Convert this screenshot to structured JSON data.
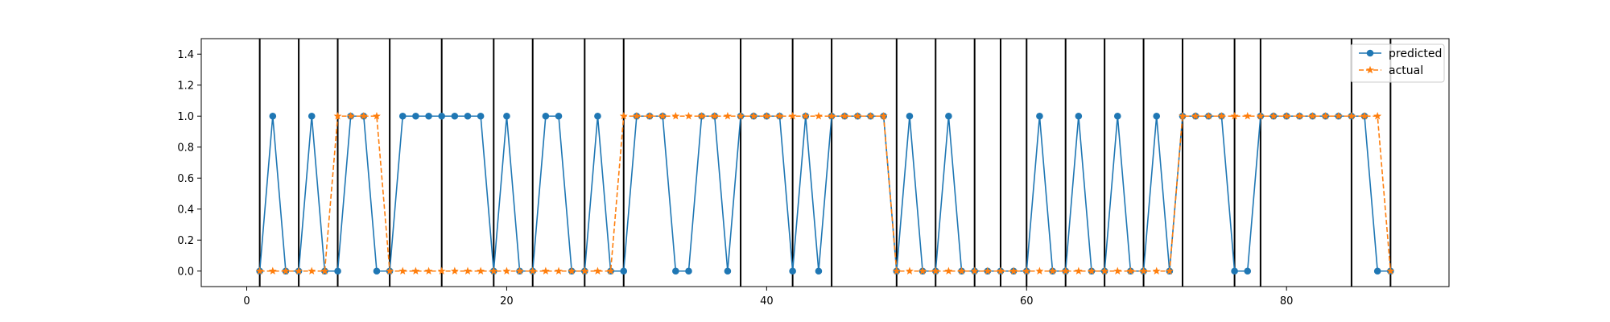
{
  "chart_data": {
    "type": "line",
    "title": "",
    "xlabel": "",
    "ylabel": "",
    "xlim": [
      -3.5,
      92.5
    ],
    "ylim": [
      -0.1,
      1.5
    ],
    "x_ticks": [
      0,
      20,
      40,
      60,
      80
    ],
    "y_ticks": [
      0.0,
      0.2,
      0.4,
      0.6,
      0.8,
      1.0,
      1.2,
      1.4
    ],
    "x_tick_labels": [
      "0",
      "20",
      "40",
      "60",
      "80"
    ],
    "y_tick_labels": [
      "0.0",
      "0.2",
      "0.4",
      "0.6",
      "0.8",
      "1.0",
      "1.2",
      "1.4"
    ],
    "vertical_lines": [
      1,
      4,
      7,
      11,
      15,
      19,
      22,
      26,
      29,
      38,
      42,
      45,
      50,
      53,
      56,
      58,
      60,
      63,
      66,
      69,
      72,
      76,
      78,
      85,
      88
    ],
    "legend_position": "upper right",
    "x": [
      1,
      2,
      3,
      4,
      5,
      6,
      7,
      8,
      9,
      10,
      11,
      12,
      13,
      14,
      15,
      16,
      17,
      18,
      19,
      20,
      21,
      22,
      23,
      24,
      25,
      26,
      27,
      28,
      29,
      30,
      31,
      32,
      33,
      34,
      35,
      36,
      37,
      38,
      39,
      40,
      41,
      42,
      43,
      44,
      45,
      46,
      47,
      48,
      49,
      50,
      51,
      52,
      53,
      54,
      55,
      56,
      57,
      58,
      59,
      60,
      61,
      62,
      63,
      64,
      65,
      66,
      67,
      68,
      69,
      70,
      71,
      72,
      73,
      74,
      75,
      76,
      77,
      78,
      79,
      80,
      81,
      82,
      83,
      84,
      85,
      86,
      87,
      88
    ],
    "series": [
      {
        "name": "predicted",
        "color": "#1f77b4",
        "linestyle": "solid",
        "marker": "circle",
        "values": [
          0,
          1,
          0,
          0,
          1,
          0,
          0,
          1,
          1,
          0,
          0,
          1,
          1,
          1,
          1,
          1,
          1,
          1,
          0,
          1,
          0,
          0,
          1,
          1,
          0,
          0,
          1,
          0,
          0,
          1,
          1,
          1,
          0,
          0,
          1,
          1,
          0,
          1,
          1,
          1,
          1,
          0,
          1,
          0,
          1,
          1,
          1,
          1,
          1,
          0,
          1,
          0,
          0,
          1,
          0,
          0,
          0,
          0,
          0,
          0,
          1,
          0,
          0,
          1,
          0,
          0,
          1,
          0,
          0,
          1,
          0,
          1,
          1,
          1,
          1,
          0,
          0,
          1,
          1,
          1,
          1,
          1,
          1,
          1,
          1,
          1,
          0,
          0
        ]
      },
      {
        "name": "actual",
        "color": "#ff7f0e",
        "linestyle": "dashed",
        "marker": "star",
        "values": [
          0,
          0,
          0,
          0,
          0,
          0,
          1,
          1,
          1,
          1,
          0,
          0,
          0,
          0,
          0,
          0,
          0,
          0,
          0,
          0,
          0,
          0,
          0,
          0,
          0,
          0,
          0,
          0,
          1,
          1,
          1,
          1,
          1,
          1,
          1,
          1,
          1,
          1,
          1,
          1,
          1,
          1,
          1,
          1,
          1,
          1,
          1,
          1,
          1,
          0,
          0,
          0,
          0,
          0,
          0,
          0,
          0,
          0,
          0,
          0,
          0,
          0,
          0,
          0,
          0,
          0,
          0,
          0,
          0,
          0,
          0,
          1,
          1,
          1,
          1,
          1,
          1,
          1,
          1,
          1,
          1,
          1,
          1,
          1,
          1,
          1,
          1,
          0
        ]
      }
    ]
  }
}
